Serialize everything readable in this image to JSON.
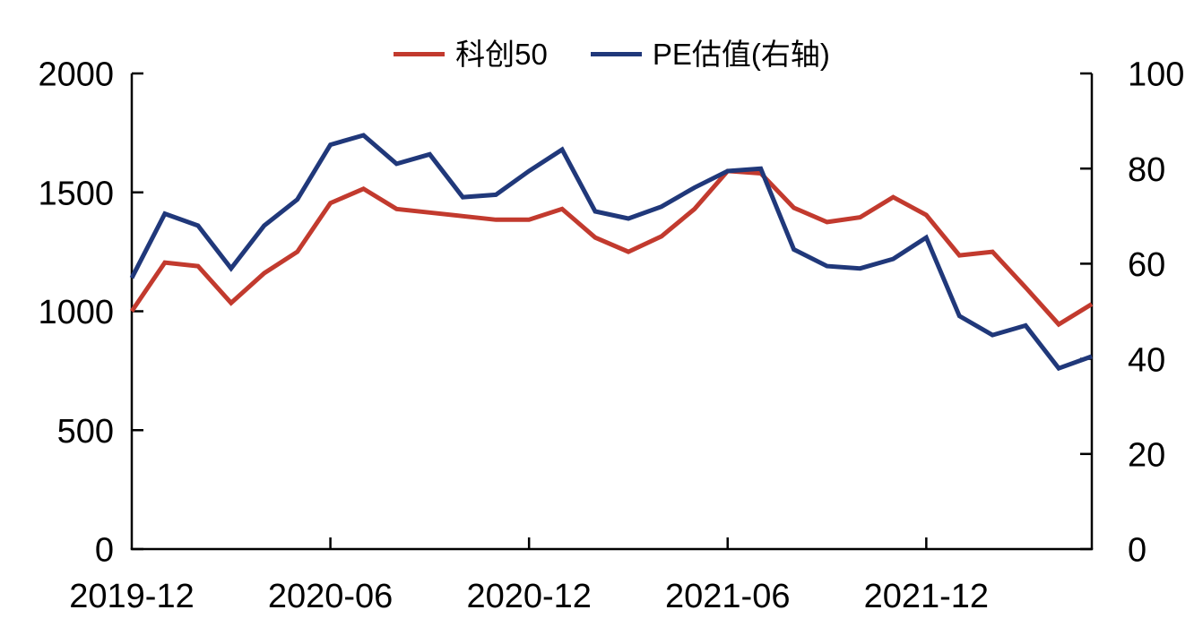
{
  "chart_data": {
    "type": "line",
    "title": "",
    "x": [
      "2019-12",
      "2020-01",
      "2020-02",
      "2020-03",
      "2020-04",
      "2020-05",
      "2020-06",
      "2020-07",
      "2020-08",
      "2020-09",
      "2020-10",
      "2020-11",
      "2020-12",
      "2021-01",
      "2021-02",
      "2021-03",
      "2021-04",
      "2021-05",
      "2021-06",
      "2021-07",
      "2021-08",
      "2021-09",
      "2021-10",
      "2021-11",
      "2021-12",
      "2022-01",
      "2022-02",
      "2022-03",
      "2022-04",
      "2022-05"
    ],
    "x_tick_labels": [
      "2019-12",
      "2020-06",
      "2020-12",
      "2021-06",
      "2021-12"
    ],
    "left_axis": {
      "min": 0,
      "max": 2000,
      "ticks": [
        0,
        500,
        1000,
        1500,
        2000
      ]
    },
    "right_axis": {
      "min": 0,
      "max": 100,
      "ticks": [
        0,
        20,
        40,
        60,
        80,
        100
      ]
    },
    "series": [
      {
        "name": "科创50",
        "axis": "left",
        "color": "#C23A2E",
        "values": [
          1000,
          1205,
          1190,
          1035,
          1160,
          1250,
          1455,
          1515,
          1430,
          1415,
          1400,
          1385,
          1385,
          1430,
          1310,
          1250,
          1315,
          1430,
          1590,
          1580,
          1435,
          1375,
          1395,
          1480,
          1405,
          1235,
          1250,
          1100,
          945,
          1030
        ]
      },
      {
        "name": "PE估值(右轴)",
        "axis": "right",
        "color": "#20387A",
        "values": [
          57,
          70.5,
          68,
          59,
          68,
          73.5,
          85,
          87,
          81,
          83,
          74,
          74.5,
          79.5,
          84,
          71,
          69.5,
          72,
          76,
          79.5,
          80,
          63,
          59.5,
          59,
          61,
          65.5,
          49,
          45,
          47,
          38,
          40.5
        ]
      }
    ],
    "grid": false,
    "legend_position": "top-center",
    "axis_color": "#000000"
  }
}
